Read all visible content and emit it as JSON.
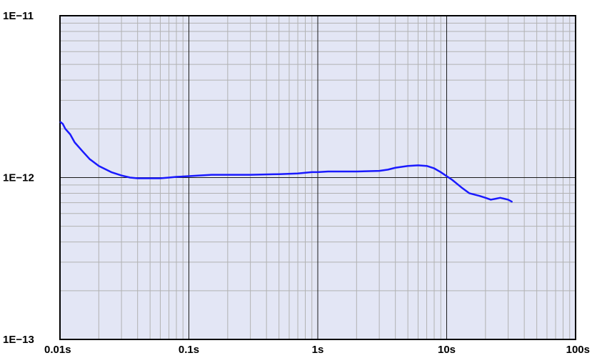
{
  "chart_data": {
    "type": "line",
    "title": "",
    "xlabel": "",
    "ylabel": "",
    "x_scale": "log",
    "y_scale": "log",
    "xlim": [
      0.01,
      100
    ],
    "ylim": [
      1e-13,
      1e-11
    ],
    "grid": true,
    "legend": "none",
    "x_ticks": [
      {
        "value": 0.01,
        "label": "0.01s"
      },
      {
        "value": 0.1,
        "label": "0.1s"
      },
      {
        "value": 1,
        "label": "1s"
      },
      {
        "value": 10,
        "label": "10s"
      },
      {
        "value": 100,
        "label": "100s"
      }
    ],
    "y_ticks": [
      {
        "value": 1e-11,
        "label": "1E−11"
      },
      {
        "value": 1e-12,
        "label": "1E−12"
      },
      {
        "value": 1e-13,
        "label": "1E−13"
      }
    ],
    "colors": {
      "plot_background": "#e3e6f5",
      "grid_minor": "#b2b2b2",
      "grid_major": "#1a1a1a",
      "frame": "#000000",
      "line": "#1a1aff"
    },
    "series": [
      {
        "name": "",
        "x": [
          0.0101,
          0.0105,
          0.011,
          0.012,
          0.013,
          0.015,
          0.017,
          0.02,
          0.025,
          0.03,
          0.035,
          0.04,
          0.05,
          0.06,
          0.07,
          0.08,
          0.1,
          0.12,
          0.15,
          0.2,
          0.3,
          0.5,
          0.7,
          0.9,
          1.0,
          1.2,
          1.5,
          2.0,
          3.0,
          3.5,
          4.0,
          5.0,
          6.0,
          7.0,
          8.0,
          9.0,
          10.0,
          11.0,
          13.0,
          15.0,
          18.0,
          20.0,
          22.0,
          24.0,
          26.0,
          28.0,
          30.0,
          32.0
        ],
        "values": [
          2.2e-12,
          2.15e-12,
          2e-12,
          1.85e-12,
          1.65e-12,
          1.45e-12,
          1.3e-12,
          1.18e-12,
          1.08e-12,
          1.03e-12,
          1e-12,
          9.9e-13,
          9.9e-13,
          9.9e-13,
          1e-12,
          1.01e-12,
          1.02e-12,
          1.03e-12,
          1.04e-12,
          1.04e-12,
          1.04e-12,
          1.05e-12,
          1.06e-12,
          1.08e-12,
          1.08e-12,
          1.09e-12,
          1.09e-12,
          1.09e-12,
          1.1e-12,
          1.12e-12,
          1.15e-12,
          1.18e-12,
          1.19e-12,
          1.18e-12,
          1.14e-12,
          1.08e-12,
          1.02e-12,
          9.7e-13,
          8.7e-13,
          8e-13,
          7.7e-13,
          7.5e-13,
          7.3e-13,
          7.4e-13,
          7.5e-13,
          7.4e-13,
          7.3e-13,
          7.1e-13
        ]
      }
    ]
  }
}
